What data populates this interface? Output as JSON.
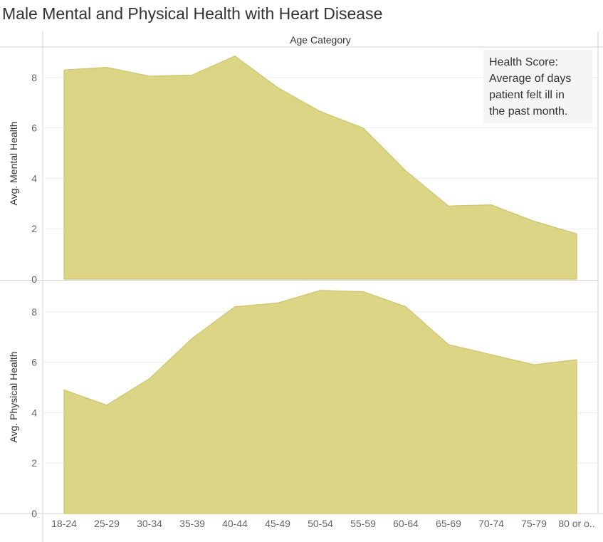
{
  "chart_data": {
    "type": "area",
    "title": "Male Mental and Physical Health with Heart Disease",
    "column_header": "Age Category",
    "categories": [
      "18-24",
      "25-29",
      "30-34",
      "35-39",
      "40-44",
      "45-49",
      "50-54",
      "55-59",
      "60-64",
      "65-69",
      "70-74",
      "75-79",
      "80 or o.."
    ],
    "panels": [
      {
        "ylabel": "Avg. Mental Health",
        "ylim": [
          0,
          9
        ],
        "yticks": [
          "0",
          "2",
          "4",
          "6",
          "8"
        ],
        "values": [
          8.3,
          8.4,
          8.05,
          8.1,
          8.85,
          7.6,
          6.65,
          6.0,
          4.3,
          2.9,
          2.95,
          2.3,
          1.8
        ]
      },
      {
        "ylabel": "Avg. Physical Health",
        "ylim": [
          0,
          9
        ],
        "yticks": [
          "0",
          "2",
          "4",
          "6",
          "8"
        ],
        "values": [
          4.9,
          4.3,
          5.35,
          6.95,
          8.2,
          8.35,
          8.85,
          8.8,
          8.2,
          6.7,
          6.3,
          5.9,
          6.1
        ]
      }
    ],
    "annotation": "Health Score:\nAverage of days\npatient felt ill in\nthe past month.",
    "grid": true,
    "colors": {
      "area_fill": "#dcd585",
      "area_stroke": "#cdc56b"
    }
  }
}
